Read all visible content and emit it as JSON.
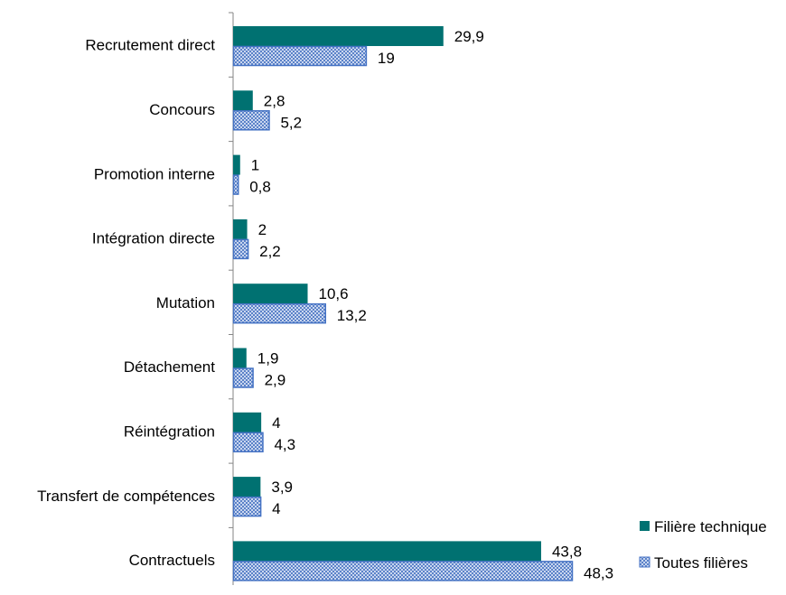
{
  "chart_data": {
    "type": "bar",
    "orientation": "horizontal",
    "categories": [
      "Recrutement direct",
      "Concours",
      "Promotion interne",
      "Intégration directe",
      "Mutation",
      "Détachement",
      "Réintégration",
      "Transfert de compétences",
      "Contractuels"
    ],
    "series": [
      {
        "name": "Filière technique",
        "values": [
          29.9,
          2.8,
          1,
          2,
          10.6,
          1.9,
          4,
          3.9,
          43.8
        ],
        "labels": [
          "29,9",
          "2,8",
          "1",
          "2",
          "10,6",
          "1,9",
          "4",
          "3,9",
          "43,8"
        ],
        "color": "#007171"
      },
      {
        "name": "Toutes filières",
        "values": [
          19,
          5.2,
          0.8,
          2.2,
          13.2,
          2.9,
          4.3,
          4,
          48.3
        ],
        "labels": [
          "19",
          "5,2",
          "0,8",
          "2,2",
          "13,2",
          "2,9",
          "4,3",
          "4",
          "48,3"
        ],
        "color": "#8EA9DB",
        "border": "#4472C4",
        "pattern": "dotted"
      }
    ],
    "xlim": [
      0,
      48.3
    ],
    "grid": false,
    "legend_position": "bottom-right"
  }
}
